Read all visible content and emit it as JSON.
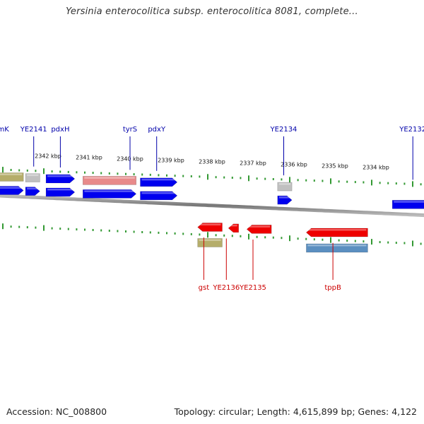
{
  "title": "Yersinia enterocolitica subsp. enterocolitica 8081, complete...",
  "footer": {
    "accession": "Accession: NC_008800",
    "summary": "Topology: circular; Length: 4,615,899 bp; Genes: 4,122"
  },
  "colors": {
    "forward_gene": "#0000ee",
    "reverse_gene": "#ee0000",
    "forward_label": "#0000aa",
    "reverse_label": "#cc0000",
    "pseudo_gray": "#c0c0c0",
    "olive_feature": "#b5ad6a",
    "pink_feature": "#e88a8a",
    "steel_feature": "#5b8fc0",
    "tick_green": "#339933",
    "backbone": "#888888"
  },
  "scale": {
    "unit": "kbp",
    "ticks": [
      {
        "kbp": 2342,
        "label": "2342 kbp"
      },
      {
        "kbp": 2341,
        "label": "2341 kbp"
      },
      {
        "kbp": 2340,
        "label": "2340 kbp"
      },
      {
        "kbp": 2339,
        "label": "2339 kbp"
      },
      {
        "kbp": 2338,
        "label": "2338 kbp"
      },
      {
        "kbp": 2337,
        "label": "2337 kbp"
      },
      {
        "kbp": 2336,
        "label": "2336 kbp"
      },
      {
        "kbp": 2335,
        "label": "2335 kbp"
      },
      {
        "kbp": 2334,
        "label": "2334 kbp"
      }
    ]
  },
  "features": [
    {
      "name": "gene-anmK",
      "label": "anmK",
      "strand": "+",
      "start": 2343.25,
      "end": 2342.6,
      "color": "olive_feature",
      "track": "outer",
      "label_kbp": 2343.2
    },
    {
      "name": "gene-anmK-cds",
      "label": "",
      "strand": "+",
      "start": 2343.25,
      "end": 2342.6,
      "color": "forward_gene",
      "track": "inner"
    },
    {
      "name": "gene-YE2141",
      "label": "YE2141",
      "strand": "+",
      "start": 2342.55,
      "end": 2342.2,
      "color": "pseudo_gray",
      "track": "outer",
      "label_kbp": 2342.35
    },
    {
      "name": "gene-YE2141-cds",
      "label": "",
      "strand": "+",
      "start": 2342.55,
      "end": 2342.2,
      "color": "forward_gene",
      "track": "inner"
    },
    {
      "name": "gene-pdxH",
      "label": "pdxH",
      "strand": "+",
      "start": 2342.05,
      "end": 2341.35,
      "color": "forward_gene",
      "track": "outer",
      "label_kbp": 2341.7
    },
    {
      "name": "gene-pdxH-cds",
      "label": "",
      "strand": "+",
      "start": 2342.05,
      "end": 2341.35,
      "color": "forward_gene",
      "track": "inner"
    },
    {
      "name": "gene-tyrS",
      "label": "tyrS",
      "strand": "+",
      "start": 2341.15,
      "end": 2339.85,
      "color": "pink_feature",
      "track": "outer",
      "label_kbp": 2340.0
    },
    {
      "name": "gene-tyrS-cds",
      "label": "",
      "strand": "+",
      "start": 2341.15,
      "end": 2339.85,
      "color": "forward_gene",
      "track": "inner"
    },
    {
      "name": "gene-pdxY",
      "label": "pdxY",
      "strand": "+",
      "start": 2339.75,
      "end": 2338.85,
      "color": "forward_gene",
      "track": "outer",
      "label_kbp": 2339.35
    },
    {
      "name": "gene-pdxY-cds",
      "label": "",
      "strand": "+",
      "start": 2339.75,
      "end": 2338.85,
      "color": "forward_gene",
      "track": "inner"
    },
    {
      "name": "gene-YE2134",
      "label": "YE2134",
      "strand": "+",
      "start": 2336.4,
      "end": 2336.05,
      "color": "pseudo_gray",
      "track": "outer",
      "label_kbp": 2336.25
    },
    {
      "name": "gene-YE2134-cds",
      "label": "",
      "strand": "+",
      "start": 2336.4,
      "end": 2336.05,
      "color": "forward_gene",
      "track": "inner"
    },
    {
      "name": "gene-YE2132",
      "label": "YE2132",
      "strand": "+",
      "start": 2333.6,
      "end": 2332.7,
      "color": "forward_gene",
      "track": "inner",
      "label_kbp": 2333.1
    },
    {
      "name": "gene-gst",
      "label": "gst",
      "strand": "-",
      "start": 2338.35,
      "end": 2337.75,
      "color": "reverse_gene",
      "track": "inner",
      "label_kbp": 2338.2
    },
    {
      "name": "gene-gst-outer",
      "label": "",
      "strand": "-",
      "start": 2338.35,
      "end": 2337.75,
      "color": "olive_feature",
      "track": "outer"
    },
    {
      "name": "gene-YE2136",
      "label": "YE2136",
      "strand": "-",
      "start": 2337.6,
      "end": 2337.35,
      "color": "reverse_gene",
      "track": "inner",
      "label_kbp": 2337.65
    },
    {
      "name": "gene-YE2135",
      "label": "YE2135",
      "strand": "-",
      "start": 2337.15,
      "end": 2336.55,
      "color": "reverse_gene",
      "track": "inner",
      "label_kbp": 2337.0
    },
    {
      "name": "gene-tppB",
      "label": "tppB",
      "strand": "-",
      "start": 2335.7,
      "end": 2334.2,
      "color": "reverse_gene",
      "track": "inner",
      "label_kbp": 2335.05
    },
    {
      "name": "gene-tppB-outer",
      "label": "",
      "strand": "-",
      "start": 2335.7,
      "end": 2334.2,
      "color": "steel_feature",
      "track": "outer"
    },
    {
      "name": "gene-edge-right",
      "label": "",
      "strand": "-",
      "start": 2332.55,
      "end": 2332.3,
      "color": "reverse_gene",
      "track": "inner"
    }
  ]
}
